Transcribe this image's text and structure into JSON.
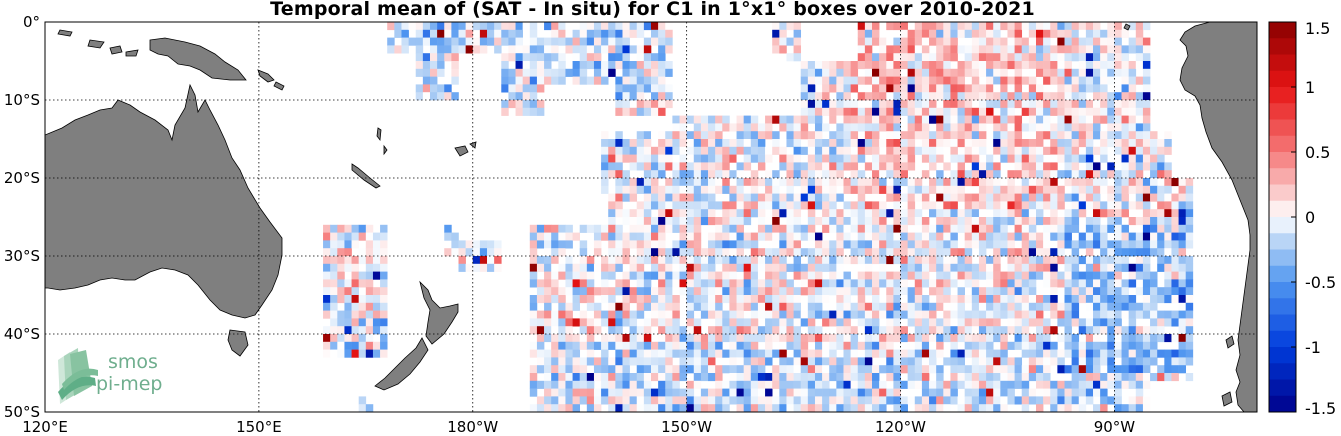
{
  "title": "Temporal mean of (SAT - In situ) for C1 in 1°x1° boxes over 2010-2021",
  "map": {
    "lon_range": [
      120,
      290
    ],
    "lat_range": [
      -50,
      0
    ],
    "lat_ticks": [
      {
        "value": 0,
        "label": "0°"
      },
      {
        "value": -10,
        "label": "10°S"
      },
      {
        "value": -20,
        "label": "20°S"
      },
      {
        "value": -30,
        "label": "30°S"
      },
      {
        "value": -40,
        "label": "40°S"
      },
      {
        "value": -50,
        "label": "50°S"
      }
    ],
    "lon_ticks": [
      {
        "value": 120,
        "label": "120°E"
      },
      {
        "value": 150,
        "label": "150°E"
      },
      {
        "value": 180,
        "label": "180°W"
      },
      {
        "value": 210,
        "label": "150°W"
      },
      {
        "value": 240,
        "label": "120°W"
      },
      {
        "value": 270,
        "label": "90°W"
      }
    ],
    "grid": "dotted",
    "land_color": "#7f7f7f",
    "cell_size_deg": 1
  },
  "colorbar": {
    "min": -1.5,
    "max": 1.5,
    "ticks": [
      "1.5",
      "1",
      "0.5",
      "0",
      "-0.5",
      "-1",
      "-1.5"
    ],
    "tick_values": [
      1.5,
      1,
      0.5,
      0,
      -0.5,
      -1,
      -1.5
    ],
    "colormap": "blue-white-red",
    "low_color": "#00008b",
    "high_color": "#8b0000"
  },
  "logo": {
    "line1": "smos",
    "line2": "pi-mep"
  }
}
